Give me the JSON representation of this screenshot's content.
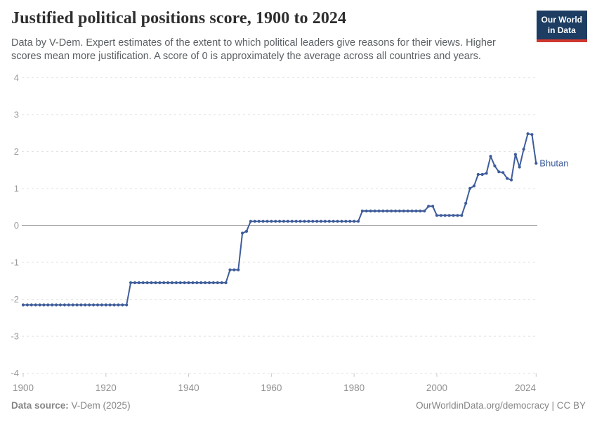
{
  "header": {
    "title": "Justified political positions score, 1900 to 2024",
    "subtitle_line1": "Data by V-Dem. Expert estimates of the extent to which political leaders give reasons for their views. Higher",
    "subtitle_line2": "scores mean more justification. A score of 0 is approximately the average across all countries and years.",
    "logo_line1": "Our World",
    "logo_line2": "in Data"
  },
  "footer": {
    "source_label": "Data source:",
    "source_value": " V-Dem (2025)",
    "right_text": "OurWorldinData.org/democracy | CC BY"
  },
  "colors": {
    "line": "#3e5c9a",
    "grid": "#e0e0e0",
    "zero_line": "#a8a8a8",
    "y_tick_label": "#9c9c9c",
    "x_tick_label": "#8f8f8f",
    "tick_mark": "#c8c8c8",
    "logo_navy": "#1d3d63",
    "logo_red": "#d0382e"
  },
  "chart_data": {
    "type": "line",
    "title": "Justified political positions score, 1900 to 2024",
    "subtitle": "Data by V-Dem. Expert estimates of the extent to which political leaders give reasons for their views. Higher scores mean more justification. A score of 0 is approximately the average across all countries and years.",
    "xlabel": "",
    "ylabel": "",
    "x_domain": [
      1900,
      2024
    ],
    "ylim": [
      -4,
      4
    ],
    "x_ticks": [
      1900,
      1920,
      1940,
      1960,
      1980,
      2000,
      2024
    ],
    "y_ticks": [
      4,
      3,
      2,
      1,
      0,
      -1,
      -2,
      -3,
      -4
    ],
    "grid": "horizontal-dashed",
    "zero_line": true,
    "legend_position": "end-of-line-label",
    "series": [
      {
        "name": "Bhutan",
        "start_year": 1900,
        "values": [
          -2.15,
          -2.15,
          -2.15,
          -2.15,
          -2.15,
          -2.15,
          -2.15,
          -2.15,
          -2.15,
          -2.15,
          -2.15,
          -2.15,
          -2.15,
          -2.15,
          -2.15,
          -2.15,
          -2.15,
          -2.15,
          -2.15,
          -2.15,
          -2.15,
          -2.15,
          -2.15,
          -2.15,
          -2.15,
          -2.15,
          -1.55,
          -1.55,
          -1.55,
          -1.55,
          -1.55,
          -1.55,
          -1.55,
          -1.55,
          -1.55,
          -1.55,
          -1.55,
          -1.55,
          -1.55,
          -1.55,
          -1.55,
          -1.55,
          -1.55,
          -1.55,
          -1.55,
          -1.55,
          -1.55,
          -1.55,
          -1.55,
          -1.55,
          -1.2,
          -1.2,
          -1.2,
          -0.21,
          -0.16,
          0.11,
          0.11,
          0.11,
          0.11,
          0.11,
          0.11,
          0.11,
          0.11,
          0.11,
          0.11,
          0.11,
          0.11,
          0.11,
          0.11,
          0.11,
          0.11,
          0.11,
          0.11,
          0.11,
          0.11,
          0.11,
          0.11,
          0.11,
          0.11,
          0.11,
          0.11,
          0.11,
          0.39,
          0.39,
          0.39,
          0.39,
          0.39,
          0.39,
          0.39,
          0.39,
          0.39,
          0.39,
          0.39,
          0.39,
          0.39,
          0.39,
          0.39,
          0.39,
          0.52,
          0.52,
          0.27,
          0.27,
          0.27,
          0.27,
          0.27,
          0.27,
          0.27,
          0.6,
          1.0,
          1.07,
          1.38,
          1.38,
          1.41,
          1.87,
          1.61,
          1.45,
          1.43,
          1.27,
          1.23,
          1.92,
          1.58,
          2.06,
          2.48,
          2.46,
          1.68
        ]
      }
    ]
  }
}
